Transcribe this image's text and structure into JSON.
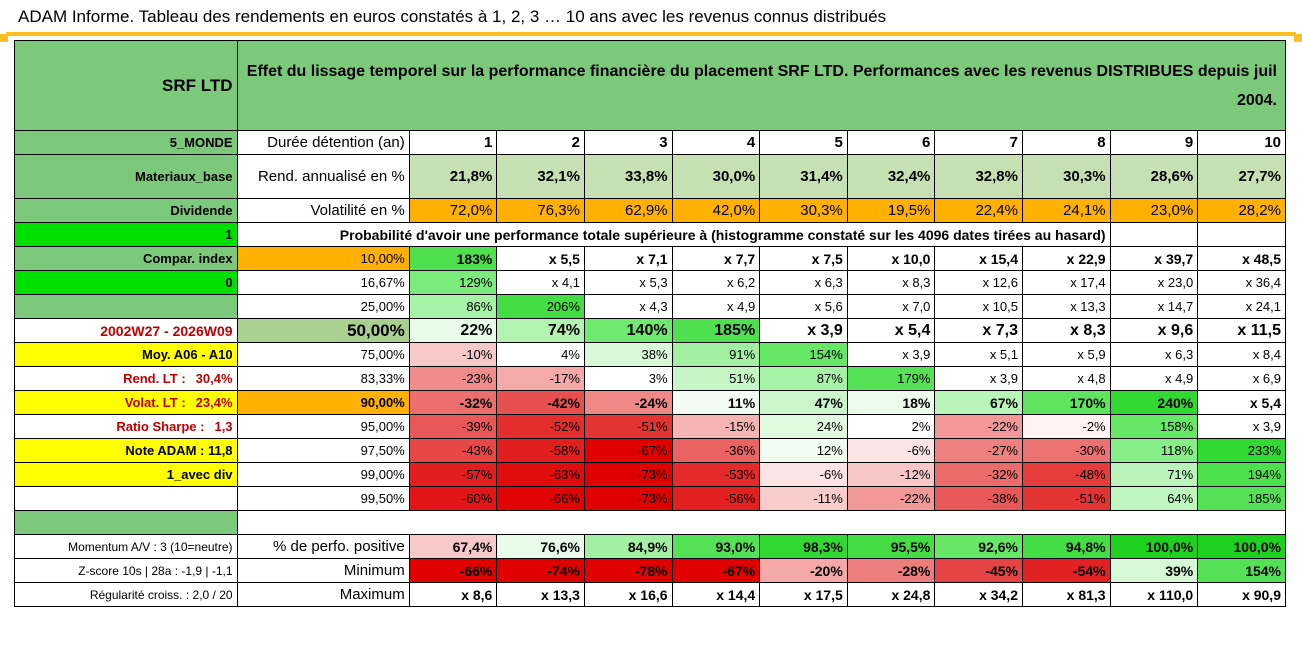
{
  "title": "ADAM Informe. Tableau des rendements en euros constatés à 1, 2, 3 … 10 ans avec les revenus connus distribués",
  "header": {
    "fund": "SRF LTD",
    "description": "Effet du lissage temporel sur la performance financière du placement SRF LTD. Performances avec les revenus DISTRIBUES depuis juil 2004."
  },
  "side": {
    "region": "5_MONDE",
    "sector": "Materiaux_base",
    "dividend_label": "Dividende",
    "flag_value": "1",
    "compar_label": "Compar. index",
    "compar_value": "0",
    "period": "2002W27 - 2026W09",
    "moy": "Moy. A06 - A10",
    "rend_lt_label": "Rend. LT :",
    "rend_lt_value": "30,4%",
    "volat_lt_label": "Volat. LT :",
    "volat_lt_value": "23,4%",
    "sharpe_label": "Ratio Sharpe :",
    "sharpe_value": "1,3",
    "note": "Note ADAM : 11,8",
    "avec_div": "1_avec div",
    "momentum": "Momentum A/V : 3 (10=neutre)",
    "zscore": "Z-score 10s | 28a : -1,9 | -1,1",
    "regularite": "Régularité croiss. : 2,0 / 20"
  },
  "rows": {
    "duree_label": "Durée détention (an)",
    "years": [
      "1",
      "2",
      "3",
      "4",
      "5",
      "6",
      "7",
      "8",
      "9",
      "10"
    ],
    "rend_label": "Rend. annualisé en %",
    "rend": [
      "21,8%",
      "32,1%",
      "33,8%",
      "30,0%",
      "31,4%",
      "32,4%",
      "32,8%",
      "30,3%",
      "28,6%",
      "27,7%"
    ],
    "vol_label": "Volatilité en %",
    "vol": [
      "72,0%",
      "76,3%",
      "62,9%",
      "42,0%",
      "30,3%",
      "19,5%",
      "22,4%",
      "24,1%",
      "23,0%",
      "28,2%"
    ],
    "proba_label": "Probabilité d'avoir une performance totale supérieure à (histogramme constaté sur les 4096 dates tirées au hasard)"
  },
  "quantiles": [
    {
      "p": "10,00%",
      "v": [
        "183%",
        "x 5,5",
        "x 7,1",
        "x 7,7",
        "x 7,5",
        "x 10,0",
        "x 15,4",
        "x 22,9",
        "x 39,7",
        "x 48,5"
      ],
      "c": [
        "#4FE04F",
        "#FFFFFF",
        "#FFFFFF",
        "#FFFFFF",
        "#FFFFFF",
        "#FFFFFF",
        "#FFFFFF",
        "#FFFFFF",
        "#FFFFFF",
        "#FFFFFF"
      ]
    },
    {
      "p": "16,67%",
      "v": [
        "129%",
        "x 4,1",
        "x 5,3",
        "x 6,2",
        "x 6,3",
        "x 8,3",
        "x 12,6",
        "x 17,4",
        "x 23,0",
        "x 36,4"
      ],
      "c": [
        "#7BEB7B",
        "#FFFFFF",
        "#FFFFFF",
        "#FFFFFF",
        "#FFFFFF",
        "#FFFFFF",
        "#FFFFFF",
        "#FFFFFF",
        "#FFFFFF",
        "#FFFFFF"
      ]
    },
    {
      "p": "25,00%",
      "v": [
        "86%",
        "206%",
        "x 4,3",
        "x 4,9",
        "x 5,6",
        "x 7,0",
        "x 10,5",
        "x 13,3",
        "x 14,7",
        "x 24,1"
      ],
      "c": [
        "#A6F2A6",
        "#44DD44",
        "#FFFFFF",
        "#FFFFFF",
        "#FFFFFF",
        "#FFFFFF",
        "#FFFFFF",
        "#FFFFFF",
        "#FFFFFF",
        "#FFFFFF"
      ]
    },
    {
      "p": "50,00%",
      "v": [
        "22%",
        "74%",
        "140%",
        "185%",
        "x 3,9",
        "x 5,4",
        "x 7,3",
        "x 8,3",
        "x 9,6",
        "x 11,5"
      ],
      "c": [
        "#E8FBE8",
        "#B2F3B2",
        "#6FE96F",
        "#4FE04F",
        "#FFFFFF",
        "#FFFFFF",
        "#FFFFFF",
        "#FFFFFF",
        "#FFFFFF",
        "#FFFFFF"
      ]
    },
    {
      "p": "75,00%",
      "v": [
        "-10%",
        "4%",
        "38%",
        "91%",
        "154%",
        "x 3,9",
        "x 5,1",
        "x 5,9",
        "x 6,3",
        "x 8,4"
      ],
      "c": [
        "#F8C9C9",
        "#FFFFFF",
        "#D8F8D8",
        "#A2F1A2",
        "#66E766",
        "#FFFFFF",
        "#FFFFFF",
        "#FFFFFF",
        "#FFFFFF",
        "#FFFFFF"
      ]
    },
    {
      "p": "83,33%",
      "v": [
        "-23%",
        "-17%",
        "3%",
        "51%",
        "87%",
        "179%",
        "x 3,9",
        "x 4,8",
        "x 4,9",
        "x 6,9"
      ],
      "c": [
        "#F08C8C",
        "#F5AAAA",
        "#FFFFFF",
        "#C6F5C6",
        "#A6F2A6",
        "#55E155",
        "#FFFFFF",
        "#FFFFFF",
        "#FFFFFF",
        "#FFFFFF"
      ]
    },
    {
      "p": "90,00%",
      "v": [
        "-32%",
        "-42%",
        "-24%",
        "11%",
        "47%",
        "18%",
        "67%",
        "170%",
        "240%",
        "x 5,4"
      ],
      "c": [
        "#EC6E6E",
        "#E85050",
        "#F08888",
        "#F2FCF2",
        "#CBF6CB",
        "#ECFBEC",
        "#B9F4B9",
        "#5EE45E",
        "#33D933",
        "#FFFFFF"
      ]
    },
    {
      "p": "95,00%",
      "v": [
        "-39%",
        "-52%",
        "-51%",
        "-15%",
        "24%",
        "2%",
        "-22%",
        "-2%",
        "158%",
        "x 3,9"
      ],
      "c": [
        "#E85858",
        "#E42E2E",
        "#E43333",
        "#F6B4B4",
        "#E0FAE0",
        "#FFFFFF",
        "#F29898",
        "#FFF3F3",
        "#66E766",
        "#FFFFFF"
      ]
    },
    {
      "p": "97,50%",
      "v": [
        "-43%",
        "-58%",
        "-67%",
        "-36%",
        "12%",
        "-6%",
        "-27%",
        "-30%",
        "118%",
        "233%"
      ],
      "c": [
        "#E64848",
        "#E21E1E",
        "#E00000",
        "#EA6262",
        "#F0FCF0",
        "#FCE4E4",
        "#EF8080",
        "#EC7272",
        "#88EE88",
        "#33D933"
      ]
    },
    {
      "p": "99,00%",
      "v": [
        "-57%",
        "-63%",
        "-73%",
        "-53%",
        "-6%",
        "-12%",
        "-32%",
        "-48%",
        "71%",
        "194%"
      ],
      "c": [
        "#E21E1E",
        "#E10C0C",
        "#E00000",
        "#E42A2A",
        "#FCE4E4",
        "#F8C8C8",
        "#EC6C6C",
        "#E63C3C",
        "#BAF4BA",
        "#4DE04D"
      ]
    },
    {
      "p": "99,50%",
      "v": [
        "-60%",
        "-66%",
        "-73%",
        "-56%",
        "-11%",
        "-22%",
        "-38%",
        "-51%",
        "64%",
        "185%"
      ],
      "c": [
        "#E21616",
        "#E00404",
        "#E00000",
        "#E22020",
        "#F9CCCC",
        "#F29898",
        "#E85858",
        "#E43333",
        "#BFF5BF",
        "#55E155"
      ]
    }
  ],
  "summary": [
    {
      "label": "% de perfo. positive",
      "v": [
        "67,4%",
        "76,6%",
        "84,9%",
        "93,0%",
        "98,3%",
        "95,5%",
        "92,6%",
        "94,8%",
        "100,0%",
        "100,0%"
      ],
      "c": [
        "#F8C9C9",
        "#E8FBE8",
        "#A2F1A2",
        "#55E155",
        "#33D933",
        "#44DD44",
        "#66E766",
        "#44DD44",
        "#1ED11E",
        "#1ED11E"
      ]
    },
    {
      "label": "Minimum",
      "v": [
        "-66%",
        "-74%",
        "-78%",
        "-67%",
        "-20%",
        "-28%",
        "-45%",
        "-54%",
        "39%",
        "154%"
      ],
      "c": [
        "#E00000",
        "#E00000",
        "#E00000",
        "#E00000",
        "#F4A8A8",
        "#EE7E7E",
        "#E64444",
        "#E22222",
        "#D6F8D6",
        "#55E155"
      ]
    },
    {
      "label": "Maximum",
      "v": [
        "x 8,6",
        "x 13,3",
        "x 16,6",
        "x 14,4",
        "x 17,5",
        "x 24,8",
        "x 34,2",
        "x 81,3",
        "x 110,0",
        "x 90,9"
      ],
      "c": [
        "#FFFFFF",
        "#FFFFFF",
        "#FFFFFF",
        "#FFFFFF",
        "#FFFFFF",
        "#FFFFFF",
        "#FFFFFF",
        "#FFFFFF",
        "#FFFFFF",
        "#FFFFFF"
      ]
    }
  ],
  "colors": {
    "accent": "#FDBF21",
    "header_green": "#7DC97B",
    "orange": "#FFB000",
    "bright_green": "#00E000",
    "yellow": "#FFFF00",
    "red": "#C00000"
  }
}
